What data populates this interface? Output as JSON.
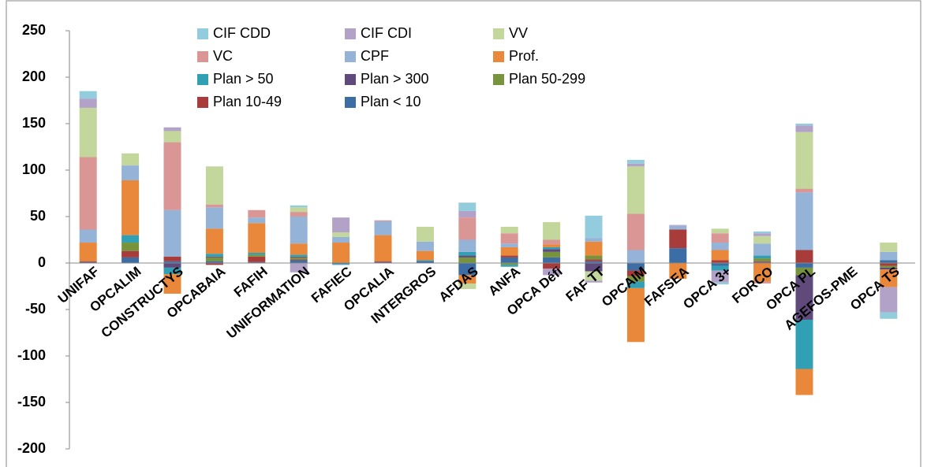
{
  "chart_data": {
    "type": "stacked_bar",
    "categories": [
      "UNIFAF",
      "OPCALIM",
      "CONSTRUCTYS",
      "OPCABAIA",
      "FAFIH",
      "UNIFORMATION",
      "FAFIEC",
      "OPCALIA",
      "INTERGROS",
      "AFDAS",
      "ANFA",
      "OPCA Défi",
      "FAF TT",
      "OPCAIM",
      "FAFSEA",
      "OPCA 3+",
      "FORCO",
      "OPCA PL",
      "AGEFOS-PME",
      "OPCA TS"
    ],
    "series": [
      {
        "name": "CIF CDD",
        "color": "#93cddd",
        "values": [
          8,
          0,
          0,
          0,
          0,
          2,
          0,
          0,
          0,
          9,
          0,
          0,
          24,
          4,
          0,
          -2,
          2,
          2,
          0,
          -7
        ]
      },
      {
        "name": "CIF CDI",
        "color": "#b3a2c7",
        "values": [
          10,
          0,
          4,
          0,
          0,
          -10,
          16,
          0,
          0,
          7,
          0,
          -7,
          -2,
          3,
          1,
          -13,
          3,
          7,
          0,
          -27
        ]
      },
      {
        "name": "VV",
        "color": "#c3d69b",
        "values": [
          53,
          13,
          12,
          41,
          0,
          5,
          5,
          0,
          16,
          -6,
          7,
          19,
          -10,
          51,
          0,
          5,
          8,
          61,
          0,
          10
        ]
      },
      {
        "name": "VC",
        "color": "#d99694",
        "values": [
          78,
          0,
          73,
          3,
          8,
          5,
          0,
          1,
          0,
          24,
          11,
          5,
          0,
          39,
          0,
          10,
          -2,
          4,
          0,
          0
        ]
      },
      {
        "name": "CPF",
        "color": "#95b3d7",
        "values": [
          14,
          16,
          50,
          23,
          6,
          29,
          6,
          15,
          10,
          13,
          4,
          0,
          4,
          14,
          4,
          8,
          13,
          62,
          0,
          9
        ]
      },
      {
        "name": "Prof.",
        "color": "#e9883a",
        "values": [
          20,
          59,
          -21,
          27,
          32,
          12,
          22,
          28,
          10,
          -9,
          9,
          3,
          15,
          -58,
          -17,
          11,
          -20,
          -28,
          0,
          -19
        ]
      },
      {
        "name": "Plan > 50",
        "color": "#31a0b5",
        "values": [
          0,
          8,
          -7,
          3,
          2,
          2,
          -1,
          0,
          1,
          4,
          -2,
          2,
          0,
          -7,
          0,
          -5,
          3,
          -53,
          0,
          0
        ]
      },
      {
        "name": "Plan > 300",
        "color": "#604a7b",
        "values": [
          0,
          0,
          -5,
          1,
          0,
          1,
          0,
          0,
          0,
          2,
          0,
          3,
          -9,
          0,
          0,
          0,
          0,
          -48,
          0,
          -2
        ]
      },
      {
        "name": "Plan 50-299",
        "color": "#77933c",
        "values": [
          0,
          9,
          0,
          4,
          2,
          2,
          0,
          0,
          0,
          6,
          -2,
          6,
          4,
          -6,
          0,
          0,
          3,
          -8,
          0,
          -2
        ]
      },
      {
        "name": "Plan 10-49",
        "color": "#a83c3a",
        "values": [
          1,
          7,
          5,
          -2,
          6,
          1,
          0,
          1,
          0,
          0,
          2,
          -6,
          2,
          -6,
          20,
          3,
          1,
          14,
          0,
          -3
        ]
      },
      {
        "name": "Plan < 10",
        "color": "#3c6ea5",
        "values": [
          1,
          6,
          2,
          2,
          1,
          3,
          -1,
          1,
          2,
          -13,
          6,
          6,
          2,
          -8,
          16,
          -3,
          1,
          -5,
          0,
          3
        ]
      }
    ],
    "ylim": [
      -200,
      250
    ],
    "yticks": [
      -200,
      -150,
      -100,
      -50,
      0,
      50,
      100,
      150,
      200,
      250
    ],
    "grid": false
  }
}
